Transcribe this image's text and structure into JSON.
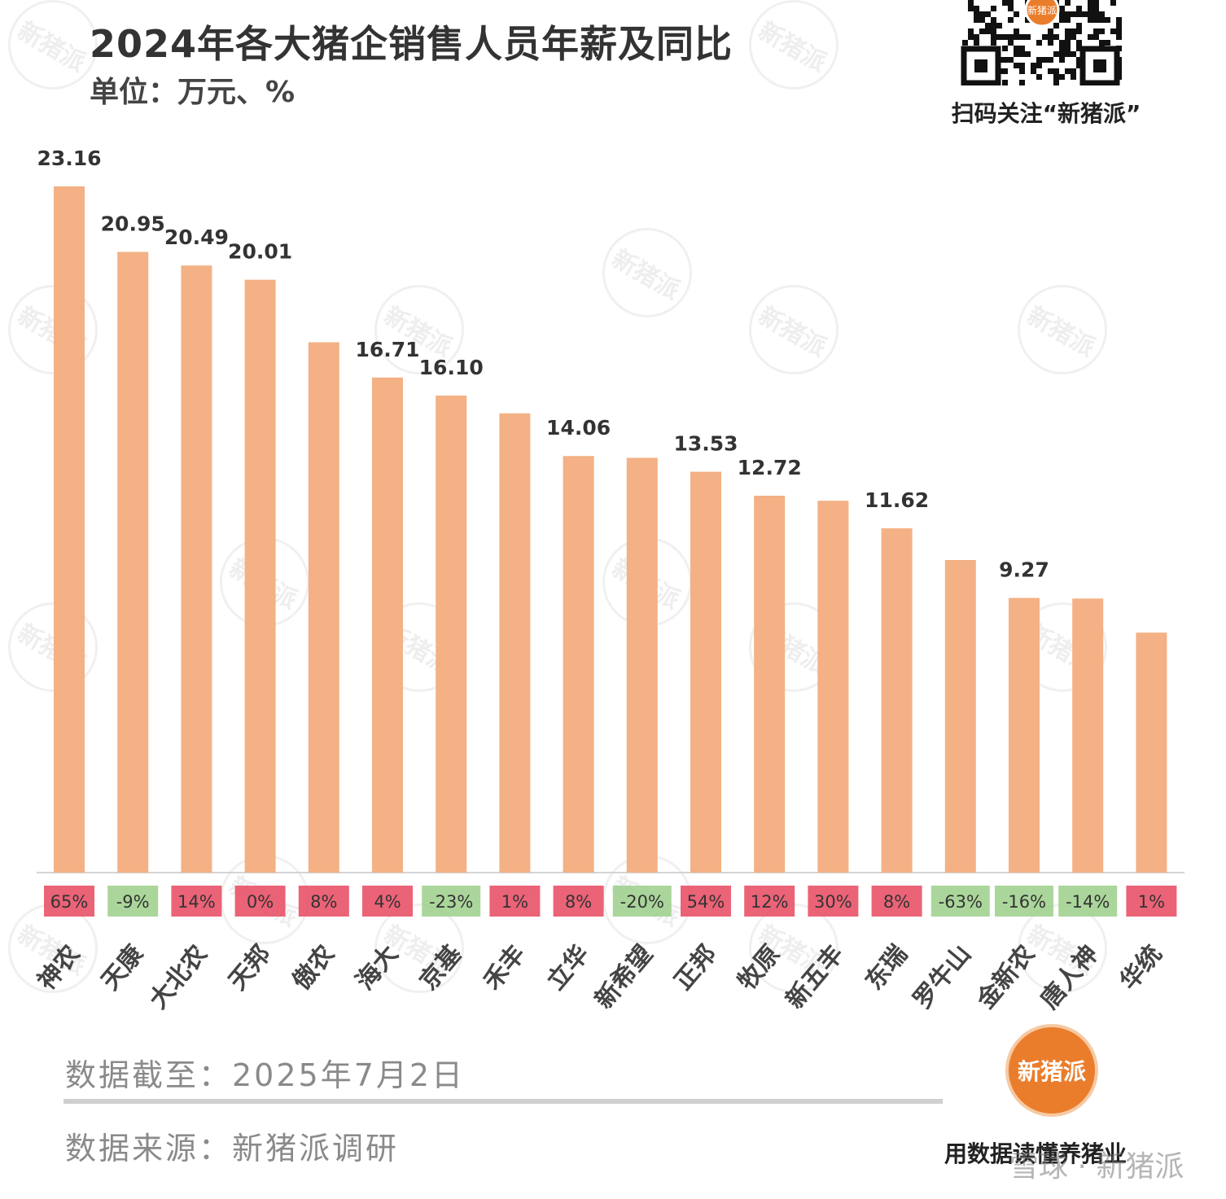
{
  "header": {
    "title": "2024年各大猪企销售人员年薪及同比",
    "unit": "单位：万元、%"
  },
  "qr": {
    "caption": "扫码关注“新猪派”",
    "badge": "新猪派"
  },
  "footer": {
    "date": "数据截至：2025年7月2日",
    "source": "数据来源：新猪派调研"
  },
  "brand": {
    "logo_text": "新猪派",
    "slogan": "用数据读懂养猪业",
    "watermark": "雪球 · 新猪派"
  },
  "colors": {
    "bar": "#f3b185",
    "positive": "#e8485f",
    "negative": "#9ccf8a"
  },
  "chart_data": {
    "type": "bar",
    "title": "2024年各大猪企销售人员年薪及同比",
    "ylabel": "万元",
    "ylim": [
      0,
      23.16
    ],
    "categories": [
      "神农",
      "天康",
      "大北农",
      "天邦",
      "傲农",
      "海大",
      "京基",
      "禾丰",
      "立华",
      "新希望",
      "正邦",
      "牧原",
      "新五丰",
      "东瑞",
      "罗牛山",
      "金新农",
      "唐人神",
      "华统"
    ],
    "values": [
      23.16,
      20.95,
      20.49,
      20.01,
      17.9,
      16.71,
      16.1,
      15.5,
      14.06,
      14.0,
      13.53,
      12.72,
      12.55,
      11.62,
      10.55,
      9.27,
      9.25,
      8.1
    ],
    "value_labels": [
      "23.16",
      "20.95",
      "20.49",
      "20.01",
      "",
      "16.71",
      "16.10",
      "",
      "14.06",
      "",
      "13.53",
      "12.72",
      "",
      "11.62",
      "",
      "9.27",
      "",
      ""
    ],
    "yoy_labels": [
      "65%",
      "-9%",
      "14%",
      "0%",
      "8%",
      "4%",
      "-23%",
      "1%",
      "8%",
      "-20%",
      "54%",
      "12%",
      "30%",
      "8%",
      "-63%",
      "-16%",
      "-14%",
      "1%"
    ],
    "yoy": [
      65,
      -9,
      14,
      0,
      8,
      4,
      -23,
      1,
      8,
      -20,
      54,
      12,
      30,
      8,
      -63,
      -16,
      -14,
      1
    ],
    "grid": false
  }
}
